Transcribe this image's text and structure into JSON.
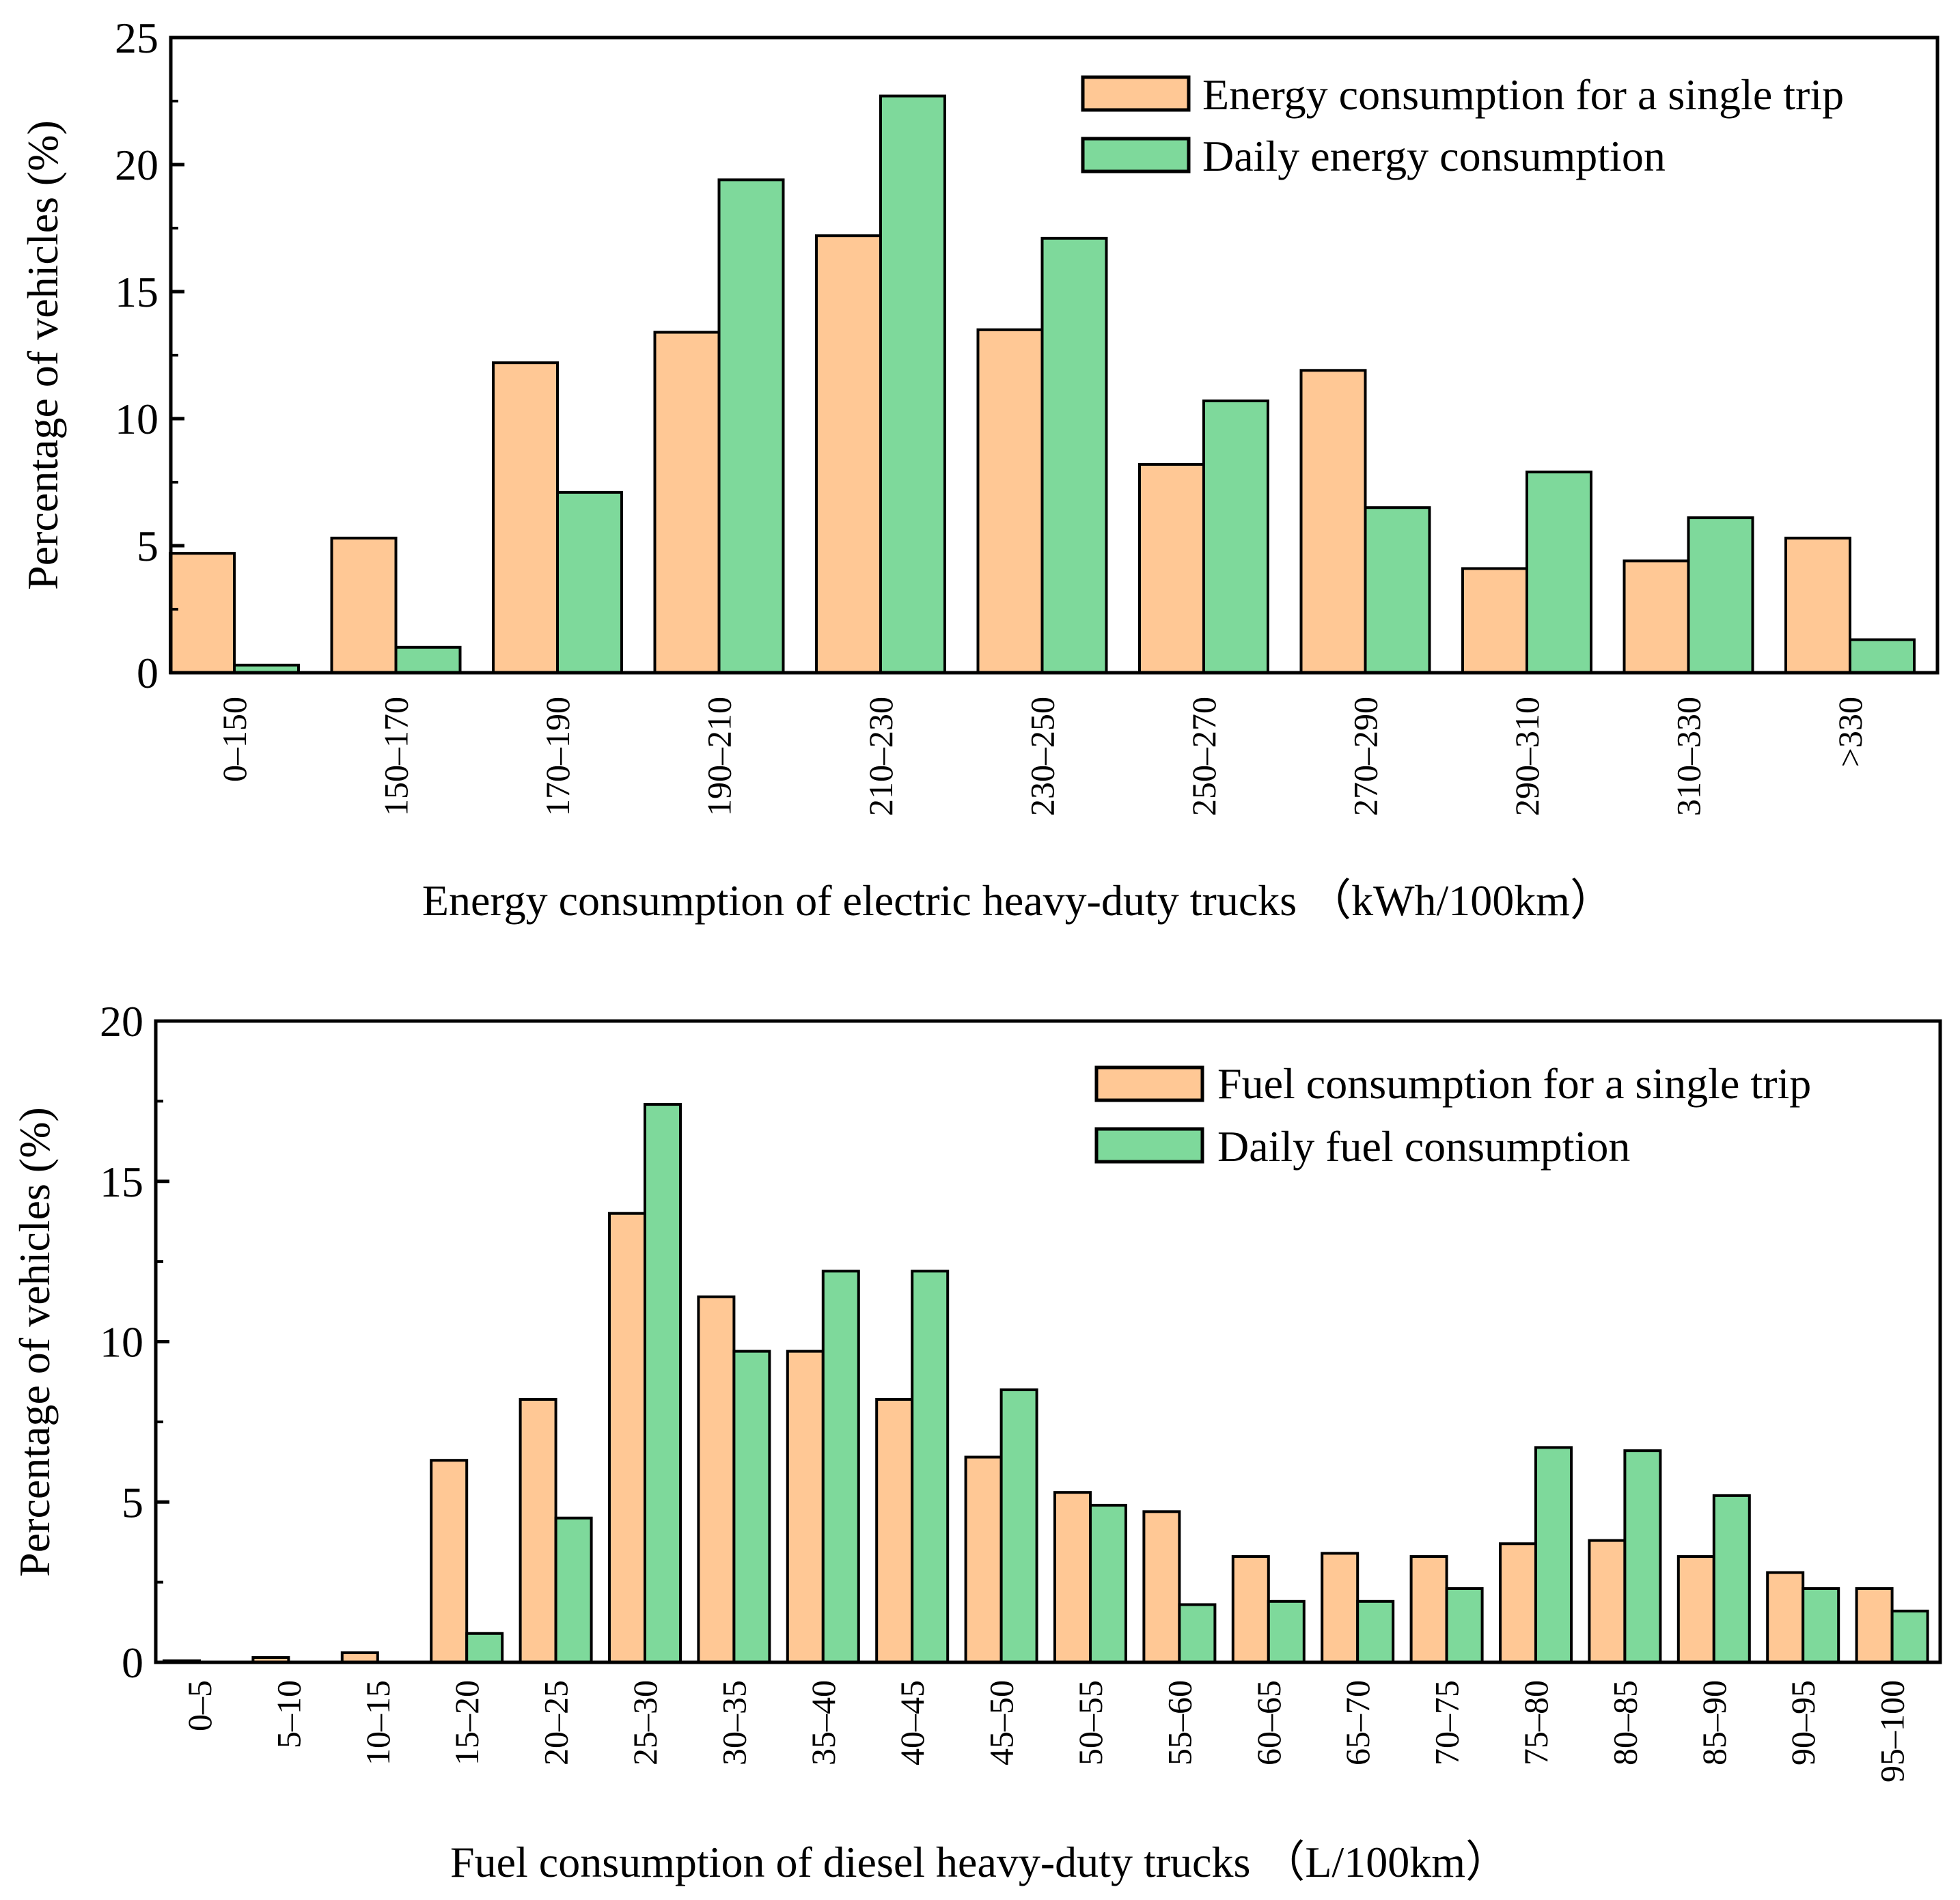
{
  "colors": {
    "single": "#FFC895",
    "daily": "#7ED99B",
    "stroke": "#000000"
  },
  "chart_data": [
    {
      "type": "bar",
      "xlabel": "Energy consumption of electric heavy-duty trucks （kWh/100km）",
      "ylabel": "Percentage of vehicles (%)",
      "ylim": [
        0,
        25
      ],
      "yticks": [
        "0",
        "5",
        "10",
        "15",
        "20",
        "25"
      ],
      "legend_position": "top-right",
      "categories": [
        "0–150",
        "150–170",
        "170–190",
        "190–210",
        "210–230",
        "230–250",
        "250–270",
        "270–290",
        "290–310",
        "310–330",
        ">330"
      ],
      "series": [
        {
          "name": "Energy consumption for a single trip",
          "values": [
            4.7,
            5.3,
            12.2,
            13.4,
            17.2,
            13.5,
            8.2,
            11.9,
            4.1,
            4.4,
            5.3
          ]
        },
        {
          "name": "Daily energy consumption",
          "values": [
            0.3,
            1.0,
            7.1,
            19.4,
            22.7,
            17.1,
            10.7,
            6.5,
            7.9,
            6.1,
            1.3
          ]
        }
      ]
    },
    {
      "type": "bar",
      "xlabel": "Fuel consumption of diesel heavy-duty trucks （L/100km）",
      "ylabel": "Percentage of vehicles (%)",
      "ylim": [
        0,
        20
      ],
      "yticks": [
        "0",
        "5",
        "10",
        "15",
        "20"
      ],
      "legend_position": "top-right",
      "categories": [
        "0–5",
        "5–10",
        "10–15",
        "15–20",
        "20–25",
        "25–30",
        "30–35",
        "35–40",
        "40–45",
        "45–50",
        "50–55",
        "55–60",
        "60–65",
        "65–70",
        "70–75",
        "75–80",
        "80–85",
        "85–90",
        "90–95",
        "95–100"
      ],
      "series": [
        {
          "name": "Fuel consumption for a single trip",
          "values": [
            0.05,
            0.15,
            0.3,
            6.3,
            8.2,
            14.0,
            11.4,
            9.7,
            8.2,
            6.4,
            5.3,
            4.7,
            3.3,
            3.4,
            3.3,
            3.7,
            3.8,
            3.3,
            2.8,
            2.3
          ]
        },
        {
          "name": "Daily fuel consumption",
          "values": [
            0.0,
            0.0,
            0.0,
            0.9,
            4.5,
            17.4,
            9.7,
            12.2,
            12.2,
            8.5,
            4.9,
            1.8,
            1.9,
            1.9,
            2.3,
            6.7,
            6.6,
            5.2,
            2.3,
            1.6
          ]
        }
      ]
    }
  ]
}
